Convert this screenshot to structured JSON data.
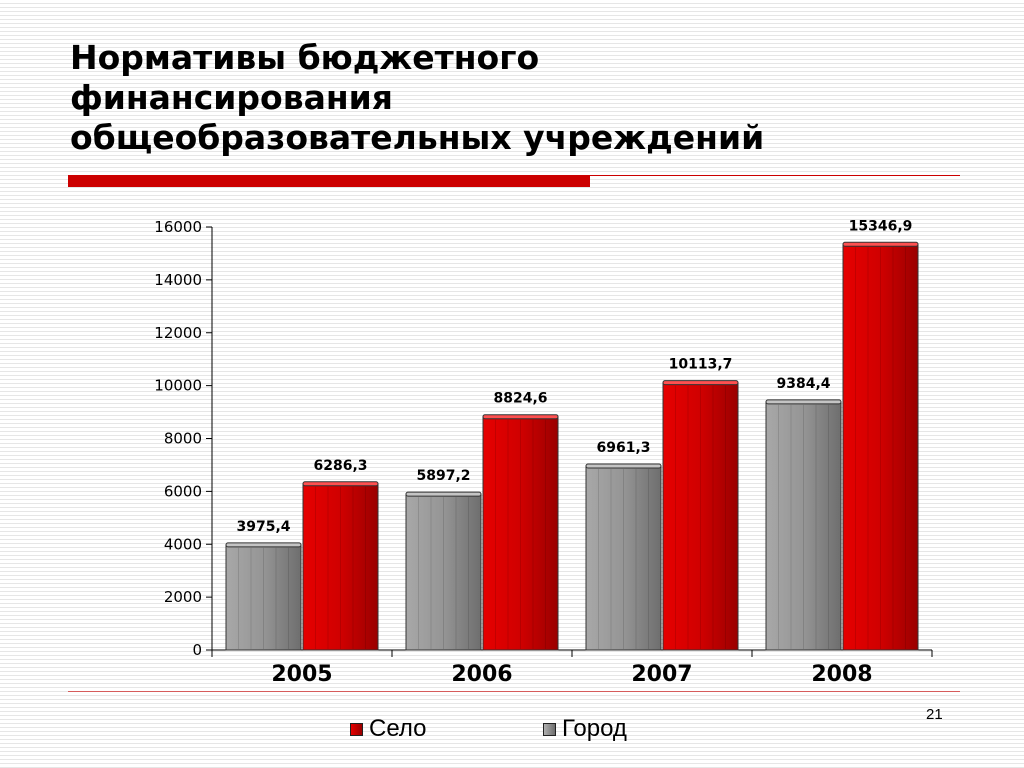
{
  "title_lines": [
    "Нормативы бюджетного",
    "финансирования",
    "общеобразовательных учреждений"
  ],
  "page_number": "21",
  "colors": {
    "accent": "#cc0000",
    "selo": "#cc0000",
    "gorod": "#8c8c8c"
  },
  "chart_data": {
    "type": "bar",
    "categories": [
      "2005",
      "2006",
      "2007",
      "2008"
    ],
    "series": [
      {
        "name": "Город",
        "values": [
          3975.4,
          5897.2,
          6961.3,
          9384.4
        ],
        "labels": [
          "3975,4",
          "5897,2",
          "6961,3",
          "9384,4"
        ],
        "color": "#8c8c8c"
      },
      {
        "name": "Село",
        "values": [
          6286.3,
          8824.6,
          10113.7,
          15346.9
        ],
        "labels": [
          "6286,3",
          "8824,6",
          "10113,7",
          "15346,9"
        ],
        "color": "#cc0000"
      }
    ],
    "y_ticks": [
      "0",
      "2000",
      "4000",
      "6000",
      "8000",
      "10000",
      "12000",
      "14000",
      "16000"
    ],
    "ylim": [
      0,
      16000
    ],
    "legend_order": [
      "Село",
      "Город"
    ],
    "legend_position": "bottom",
    "grid": false
  }
}
